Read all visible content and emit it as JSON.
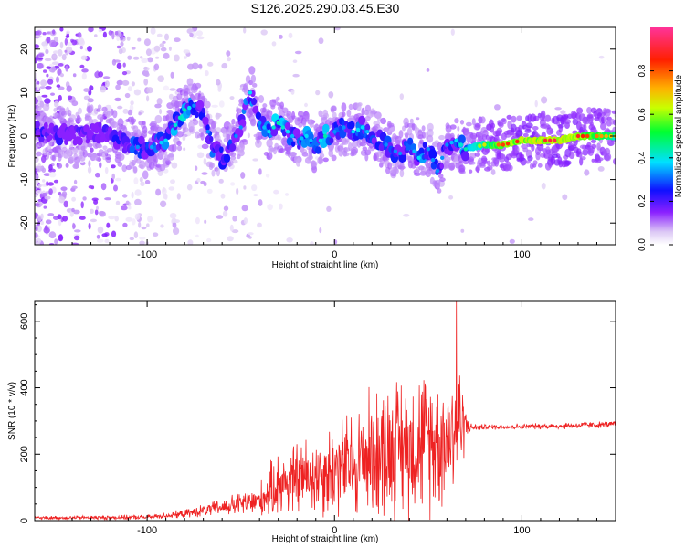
{
  "title": "S126.2025.290.03.45.E30",
  "chart_data": [
    {
      "type": "heatmap",
      "xlabel": "Height of straight line (km)",
      "ylabel": "Frequency (Hz)",
      "xlim": [
        -160,
        150
      ],
      "ylim": [
        -25,
        25
      ],
      "xticks": [
        -100,
        0,
        100
      ],
      "yticks": [
        -20,
        -10,
        0,
        10,
        20
      ],
      "colorbar": {
        "label": "Normalized spectral amplitude",
        "range": [
          0,
          1
        ],
        "ticks": [
          "0.0",
          "0.2",
          "0.4",
          "0.6",
          "0.8"
        ],
        "colors": [
          "#ffffff",
          "#d9c6f2",
          "#7a00ff",
          "#0000ff",
          "#00ffff",
          "#00ff00",
          "#ffff00",
          "#ff7f00",
          "#ff0000",
          "#ff3399"
        ]
      },
      "ridge": {
        "x": [
          -155,
          -140,
          -125,
          -110,
          -100,
          -90,
          -80,
          -75,
          -70,
          -65,
          -60,
          -55,
          -50,
          -45,
          -40,
          -35,
          -30,
          -25,
          -20,
          -15,
          -10,
          -5,
          0,
          5,
          10,
          15,
          20,
          25,
          30,
          35,
          40,
          45,
          50,
          55,
          60,
          65,
          70,
          80,
          90,
          100,
          110,
          120,
          130,
          140,
          150
        ],
        "freq": [
          1,
          0,
          1,
          -2,
          -3,
          -1,
          6,
          7,
          5,
          -3,
          -5,
          -2,
          2,
          10,
          3,
          1,
          3,
          1,
          -1,
          0,
          -2,
          0,
          1,
          2,
          1,
          2,
          0,
          -1,
          -3,
          -4,
          -2,
          -5,
          -3,
          -8,
          -2,
          -1,
          -3,
          -2,
          -2,
          -1,
          -1,
          -1,
          0,
          0,
          0
        ],
        "amp": [
          0.25,
          0.2,
          0.2,
          0.3,
          0.3,
          0.35,
          0.4,
          0.3,
          0.3,
          0.3,
          0.25,
          0.3,
          0.3,
          0.35,
          0.3,
          0.35,
          0.4,
          0.35,
          0.3,
          0.35,
          0.3,
          0.4,
          0.3,
          0.3,
          0.35,
          0.35,
          0.3,
          0.3,
          0.3,
          0.3,
          0.3,
          0.35,
          0.3,
          0.3,
          0.3,
          0.35,
          0.4,
          0.6,
          0.75,
          0.8,
          0.8,
          0.85,
          0.8,
          0.7,
          0.6
        ]
      }
    },
    {
      "type": "line",
      "xlabel": "Height of straight line (km)",
      "ylabel": "SNR (10 * v/v)",
      "xlim": [
        -160,
        150
      ],
      "ylim": [
        0,
        660
      ],
      "xticks": [
        -100,
        0,
        100
      ],
      "yticks": [
        0,
        200,
        400,
        600
      ],
      "series": [
        {
          "name": "SNR",
          "color": "#ee2222",
          "envelope": {
            "x": [
              -160,
              -100,
              -80,
              -60,
              -40,
              -30,
              -10,
              10,
              20,
              30,
              40,
              50,
              60,
              66,
              70,
              72,
              80,
              100,
              120,
              150
            ],
            "mean": [
              8,
              10,
              20,
              40,
              60,
              110,
              140,
              170,
              200,
              220,
              230,
              240,
              250,
              300,
              290,
              280,
              282,
              283,
              285,
              290
            ],
            "spread": [
              6,
              8,
              15,
              30,
              60,
              120,
              150,
              200,
              240,
              250,
              260,
              260,
              240,
              250,
              80,
              15,
              10,
              10,
              12,
              12
            ]
          },
          "peak": {
            "x": 65,
            "value": 660
          }
        }
      ]
    }
  ]
}
